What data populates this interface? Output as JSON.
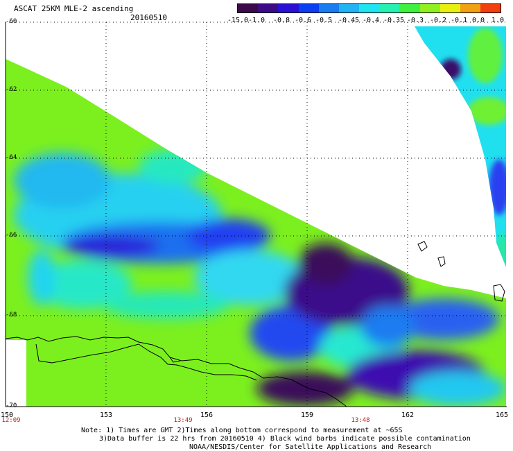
{
  "header": {
    "title": "ASCAT 25KM MLE-2 ascending",
    "date": "20160510"
  },
  "colorbar": {
    "labels": [
      "-15.0",
      "-1.0",
      "-0.8",
      "-0.6",
      "-0.5",
      "-0.45",
      "-0.4",
      "-0.35",
      "-0.3",
      "-0.2",
      "-0.1",
      "0.0",
      "1.0"
    ],
    "colors": [
      "#3a0a4a",
      "#3c0c86",
      "#2a10d2",
      "#0a40f0",
      "#1a7cf0",
      "#20b4f4",
      "#20e4f0",
      "#28f0b0",
      "#40f040",
      "#90f020",
      "#e8f010",
      "#f0a010",
      "#f04010"
    ]
  },
  "axes": {
    "x_labels": [
      "150",
      "153",
      "156",
      "159",
      "162",
      "165"
    ],
    "y_labels": [
      "-60",
      "-62",
      "-64",
      "-66",
      "-68",
      "-70"
    ],
    "time_labels": [
      "12:09",
      "13:49",
      "13:48"
    ]
  },
  "colors": {
    "time_label": "#c02010"
  },
  "notes": {
    "line1": "Note: 1) Times are GMT 2)Times along bottom correspond to measurement at ~65S",
    "line2": "3)Data buffer is 22 hrs from 20160510 4) Black wind barbs indicate possible contamination",
    "line3": "NOAA/NESDIS/Center for Satellite Applications and Research"
  }
}
